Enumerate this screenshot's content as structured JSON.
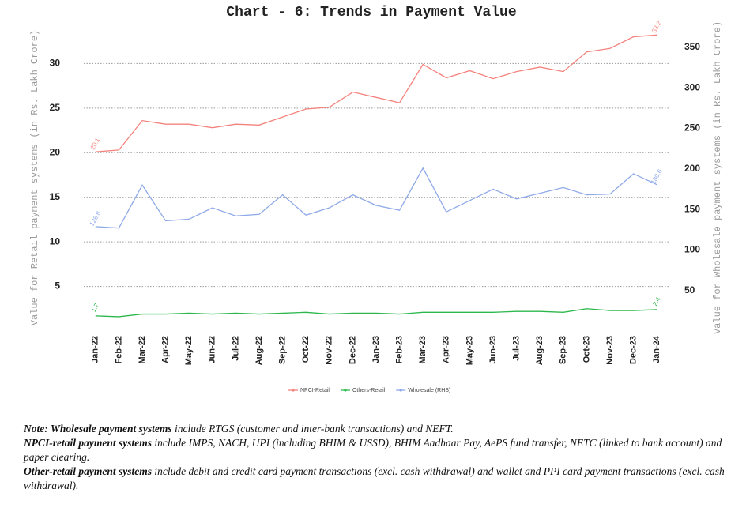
{
  "chart_data": {
    "type": "line",
    "title": "Chart - 6: Trends in Payment Value",
    "y_label": "Value for Retail payment systems (in Rs. Lakh Crore)",
    "y2_label": "Value for Wholesale payment systems (in Rs. Lakh Crore)",
    "categories": [
      "Jan-22",
      "Feb-22",
      "Mar-22",
      "Apr-22",
      "May-22",
      "Jun-22",
      "Jul-22",
      "Aug-22",
      "Sep-22",
      "Oct-22",
      "Nov-22",
      "Dec-22",
      "Jan-23",
      "Feb-23",
      "Mar-23",
      "Apr-23",
      "May-23",
      "Jun-23",
      "Jul-23",
      "Aug-23",
      "Sep-23",
      "Oct-23",
      "Nov-23",
      "Dec-23",
      "Jan-24"
    ],
    "series": [
      {
        "name": "NPCI-Retail",
        "color": "#f4837d",
        "axis": "y",
        "values": [
          20.1,
          20.3,
          23.6,
          23.2,
          23.2,
          22.8,
          23.2,
          23.1,
          24.0,
          24.9,
          25.1,
          26.8,
          26.2,
          25.6,
          29.9,
          28.4,
          29.2,
          28.3,
          29.1,
          29.6,
          29.1,
          31.3,
          31.7,
          33.0,
          33.2
        ],
        "value_labels": [
          "20.1",
          null,
          null,
          null,
          null,
          null,
          null,
          null,
          null,
          null,
          null,
          null,
          null,
          null,
          null,
          null,
          null,
          null,
          null,
          null,
          null,
          null,
          null,
          null,
          "33.2"
        ]
      },
      {
        "name": "Others-Retail",
        "color": "#2db84d",
        "axis": "y",
        "values": [
          1.7,
          1.6,
          1.9,
          1.9,
          2.0,
          1.9,
          2.0,
          1.9,
          2.0,
          2.1,
          1.9,
          2.0,
          2.0,
          1.9,
          2.1,
          2.1,
          2.1,
          2.1,
          2.2,
          2.2,
          2.1,
          2.5,
          2.3,
          2.3,
          2.4
        ],
        "value_labels": [
          "1.7",
          null,
          null,
          null,
          null,
          null,
          null,
          null,
          null,
          null,
          null,
          null,
          null,
          null,
          null,
          null,
          null,
          null,
          null,
          null,
          null,
          null,
          null,
          null,
          "2.4"
        ]
      },
      {
        "name": "Wholesale (RHS)",
        "color": "#8ea9e8",
        "axis": "y2",
        "values": [
          128.8,
          127,
          180,
          136,
          138,
          152,
          142,
          144,
          168,
          143,
          152,
          168,
          155,
          149,
          201,
          147,
          161,
          175,
          163,
          170,
          177,
          168,
          169,
          194,
          180.6
        ],
        "value_labels": [
          "128.8",
          null,
          null,
          null,
          null,
          null,
          null,
          null,
          null,
          null,
          null,
          null,
          null,
          null,
          null,
          null,
          null,
          null,
          null,
          null,
          null,
          null,
          null,
          null,
          "180.6"
        ]
      }
    ],
    "ylim": [
      0,
      35
    ],
    "yticks": [
      5,
      10,
      15,
      20,
      25,
      30
    ],
    "y2lim": [
      0,
      385
    ],
    "y2ticks": [
      50,
      100,
      150,
      200,
      250,
      300,
      350
    ],
    "grid": true,
    "legend": "bottom"
  },
  "notes": [
    {
      "bold": "Note: Wholesale payment systems",
      "text": "include RTGS (customer and inter-bank transactions) and NEFT."
    },
    {
      "bold": "NPCI-retail payment systems",
      "text": "include IMPS, NACH, UPI (including BHIM & USSD), BHIM Aadhaar Pay, AePS fund transfer, NETC (linked to bank account) and paper clearing."
    },
    {
      "bold": "Other-retail payment systems",
      "text": "include debit and credit card payment transactions (excl. cash withdrawal) and wallet and PPI card payment transactions (excl. cash withdrawal)."
    }
  ]
}
